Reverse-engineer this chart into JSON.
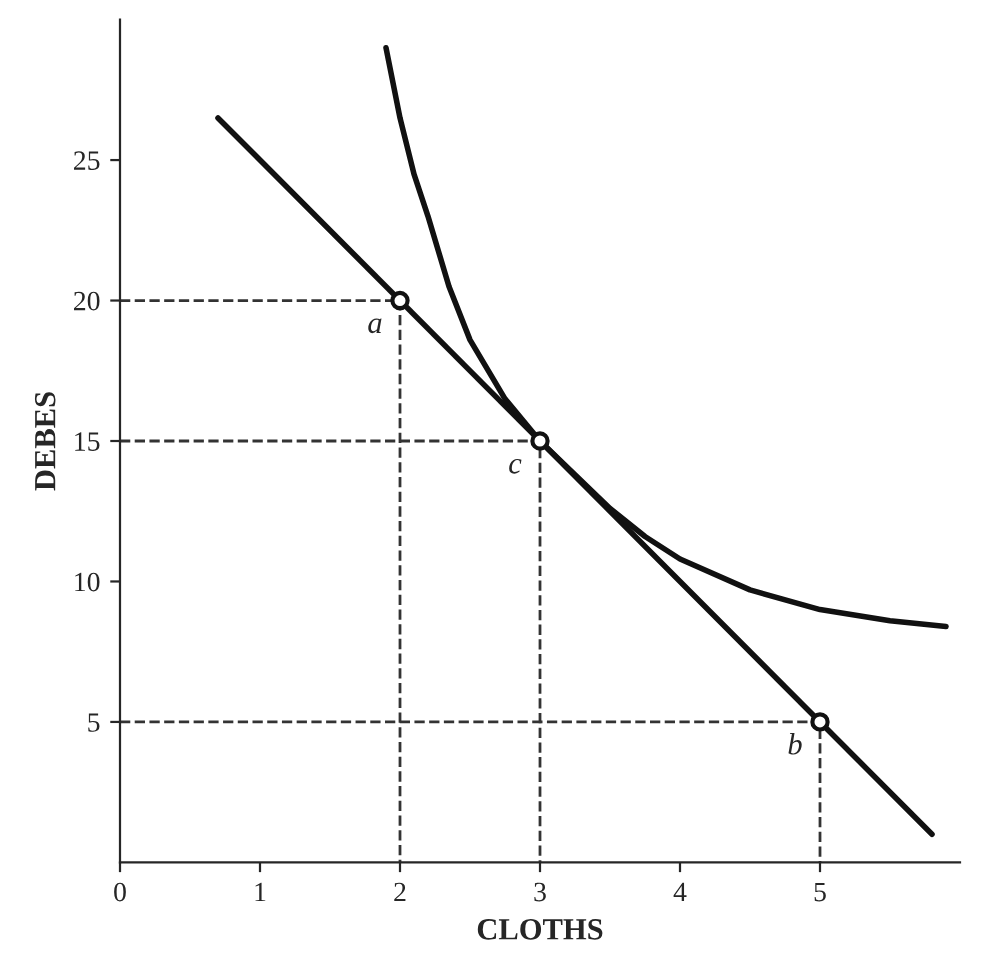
{
  "chart_data": {
    "type": "line",
    "xlabel": "CLOTHS",
    "ylabel": "DEBES",
    "xlim": [
      0,
      6
    ],
    "ylim": [
      0,
      30
    ],
    "xticks": [
      0,
      1,
      2,
      3,
      4,
      5
    ],
    "yticks": [
      5,
      10,
      15,
      20,
      25
    ],
    "grid": false,
    "legend": false,
    "series": [
      {
        "color": "#111111",
        "line_style": "solid",
        "marker": "none",
        "x": [
          0.7,
          5.8
        ],
        "values": [
          26.5,
          1
        ]
      },
      {
        "color": "#111111",
        "line_style": "solid",
        "marker": "none",
        "x": [
          1.9,
          2.0,
          2.1,
          2.2,
          2.35,
          2.5,
          2.75,
          3,
          3.25,
          3.5,
          3.75,
          4,
          4.5,
          5,
          5.5,
          5.9
        ],
        "values": [
          29,
          26.5,
          24.5,
          23,
          20.5,
          18.6,
          16.5,
          15,
          13.8,
          12.6,
          11.6,
          10.8,
          9.7,
          9,
          8.6,
          8.4
        ]
      },
      {
        "color": "#333333",
        "line_style": "dashed",
        "marker": "none",
        "x": [
          0,
          2,
          2
        ],
        "values": [
          20,
          20,
          0
        ]
      },
      {
        "color": "#333333",
        "line_style": "dashed",
        "marker": "none",
        "x": [
          0,
          3,
          3
        ],
        "values": [
          15,
          15,
          0
        ]
      },
      {
        "color": "#333333",
        "line_style": "dashed",
        "marker": "none",
        "x": [
          0,
          5,
          5
        ],
        "values": [
          5,
          5,
          0
        ]
      },
      {
        "type": "scatter",
        "color": "#111111",
        "marker": "circle",
        "x": [
          2,
          3,
          5
        ],
        "values": [
          20,
          15,
          5
        ]
      }
    ],
    "annotations": [
      {
        "text": "a",
        "x": 2,
        "y": 20
      },
      {
        "text": "c",
        "x": 3,
        "y": 15
      },
      {
        "text": "b",
        "x": 5,
        "y": 5
      }
    ]
  }
}
